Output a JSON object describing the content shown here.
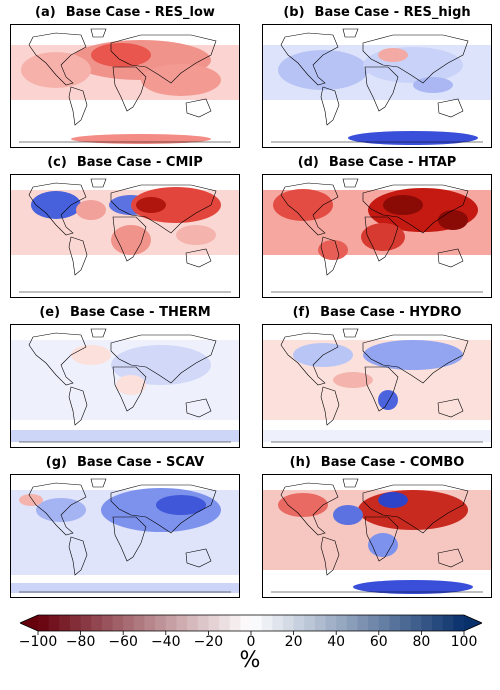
{
  "panels": [
    {
      "letter": "(a)",
      "title": "Base Case - RES_low"
    },
    {
      "letter": "(b)",
      "title": "Base Case - RES_high"
    },
    {
      "letter": "(c)",
      "title": "Base Case - CMIP"
    },
    {
      "letter": "(d)",
      "title": "Base Case - HTAP"
    },
    {
      "letter": "(e)",
      "title": "Base Case - THERM"
    },
    {
      "letter": "(f)",
      "title": "Base Case - HYDRO"
    },
    {
      "letter": "(g)",
      "title": "Base Case - SCAV"
    },
    {
      "letter": "(h)",
      "title": "Base Case - COMBO"
    }
  ],
  "colorbar": {
    "ticks": [
      "−100",
      "−80",
      "−60",
      "−40",
      "−20",
      "0",
      "20",
      "40",
      "60",
      "80",
      "100"
    ],
    "unit": "%",
    "range": [
      -100,
      100
    ],
    "colors": {
      "low": "#67000d",
      "mid": "#ffffff",
      "high": "#08306b"
    }
  }
}
